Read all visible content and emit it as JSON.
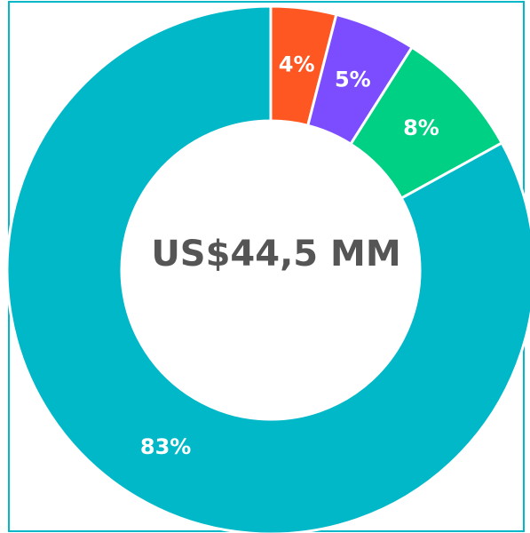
{
  "chart_data": {
    "type": "donut",
    "center_label": "US$44,5 MM",
    "values": [
      4,
      5,
      8,
      83
    ],
    "value_labels": [
      "4%",
      "5%",
      "8%",
      "83%"
    ],
    "colors": [
      "#ff5722",
      "#7c4dff",
      "#00d084",
      "#00b8c8"
    ]
  }
}
